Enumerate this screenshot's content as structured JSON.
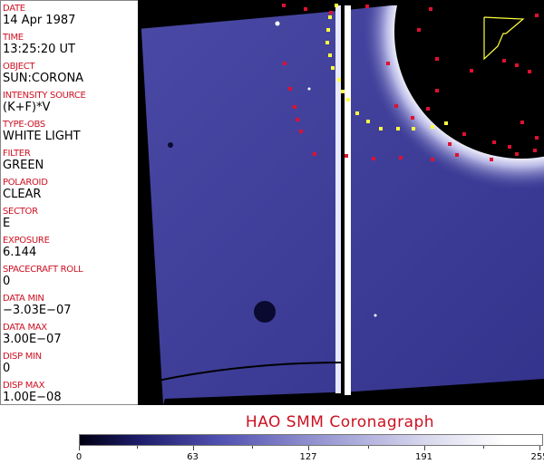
{
  "header_fields": [
    {
      "label": "DATE",
      "value": "14 Apr 1987"
    },
    {
      "label": "TIME",
      "value": "13:25:20 UT"
    },
    {
      "label": "OBJECT",
      "value": "SUN:CORONA"
    },
    {
      "label": "INTENSITY SOURCE",
      "value": "(K+F)*V"
    },
    {
      "label": "TYPE-OBS",
      "value": "WHITE LIGHT"
    },
    {
      "label": "FILTER",
      "value": "GREEN"
    },
    {
      "label": "POLAROID",
      "value": "CLEAR"
    },
    {
      "label": "SECTOR",
      "value": "E"
    },
    {
      "label": "EXPOSURE",
      "value": "6.144"
    },
    {
      "label": "SPACECRAFT ROLL",
      "value": "0"
    },
    {
      "label": "DATA MIN",
      "value": "−3.03E−07"
    },
    {
      "label": "DATA MAX",
      "value": "3.00E−07"
    },
    {
      "label": "DISP MIN",
      "value": "0"
    },
    {
      "label": "DISP MAX",
      "value": "1.00E−08"
    }
  ],
  "title": "HAO  SMM Coronagraph",
  "colorbar": {
    "ticks": [
      "0",
      "63",
      "127",
      "191",
      "255"
    ],
    "min": 0,
    "max": 255
  },
  "colors": {
    "label": "#cc1122",
    "image_base": "#3c3c96",
    "marker_red": "#e01030",
    "marker_yellow": "#ffff40"
  }
}
